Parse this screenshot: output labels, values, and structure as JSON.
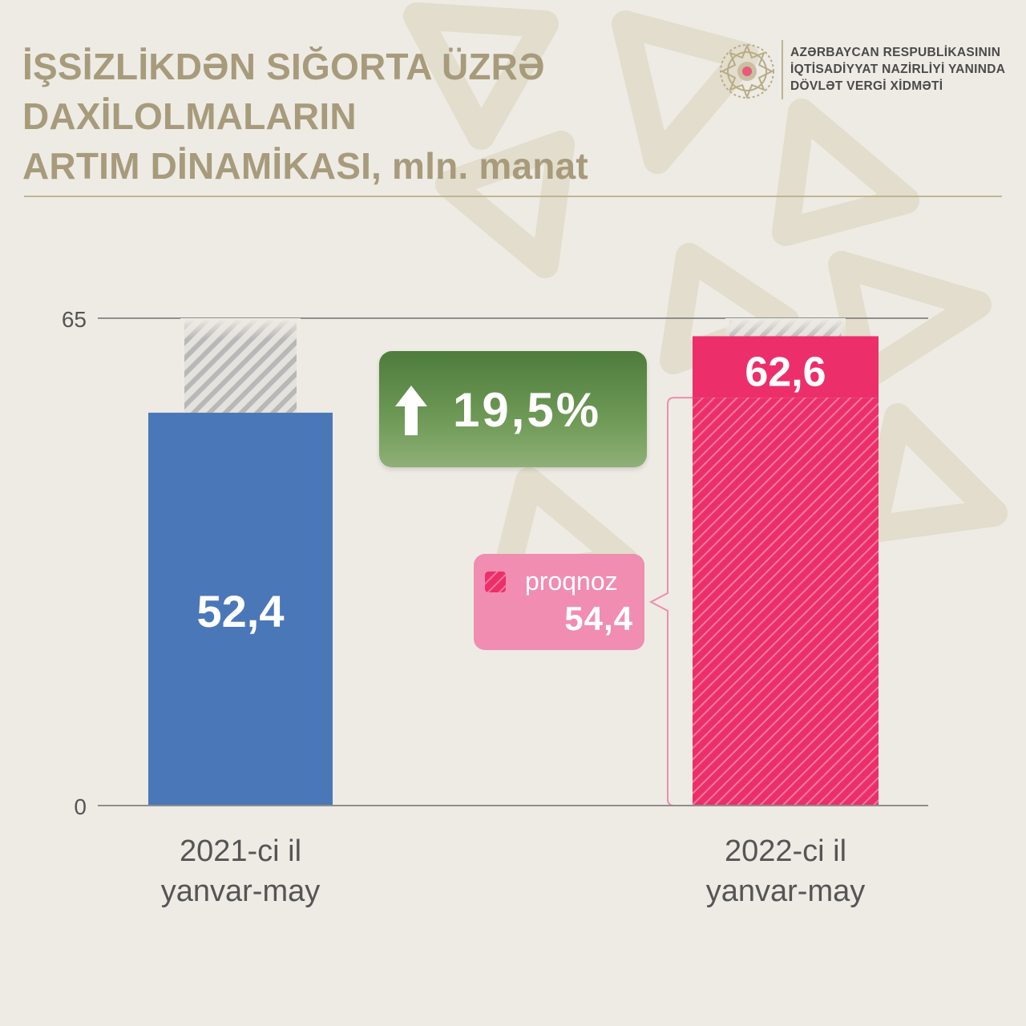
{
  "header": {
    "title_lines": [
      "İŞSİZLİKDƏN SIĞORTA ÜZRƏ",
      "DAXİLOLMALARIN",
      "ARTIM DİNAMİKASI, mln. manat"
    ],
    "agency_lines": [
      "AZƏRBAYCAN RESPUBLİKASININ",
      "İQTİSADİYYAT NAZİRLİYİ YANINDA",
      "DÖVLƏT VERGİ XİDMƏTİ"
    ],
    "logo_icon": "emblem-icon"
  },
  "chart_data": {
    "type": "bar",
    "title": "İŞSİZLİKDƏN SIĞORTA ÜZRƏ DAXİLOLMALARIN ARTIM DİNAMİKASI, mln. manat",
    "categories": [
      {
        "label_lines": [
          "2021-ci il",
          "yanvar-may"
        ]
      },
      {
        "label_lines": [
          "2022-ci il",
          "yanvar-may"
        ]
      }
    ],
    "values": [
      52.4,
      62.6
    ],
    "value_labels": [
      "52,4",
      "62,6"
    ],
    "forecast": {
      "label": "proqnoz",
      "value": 54.4,
      "value_label": "54,4",
      "category_index": 1
    },
    "growth": {
      "label": "19,5%",
      "value": 19.5,
      "direction": "up"
    },
    "ylim": [
      0,
      65
    ],
    "yticks": [
      0,
      65
    ],
    "ytick_labels": [
      "0",
      "65"
    ],
    "colors": {
      "bar_2021": "#4a77b8",
      "bar_2022": "#ec2f6a",
      "forecast_box": "#f08db0",
      "growth_badge": "#5a8747",
      "axis_lines": "#8e8e8e",
      "title": "#a79b7c"
    }
  }
}
